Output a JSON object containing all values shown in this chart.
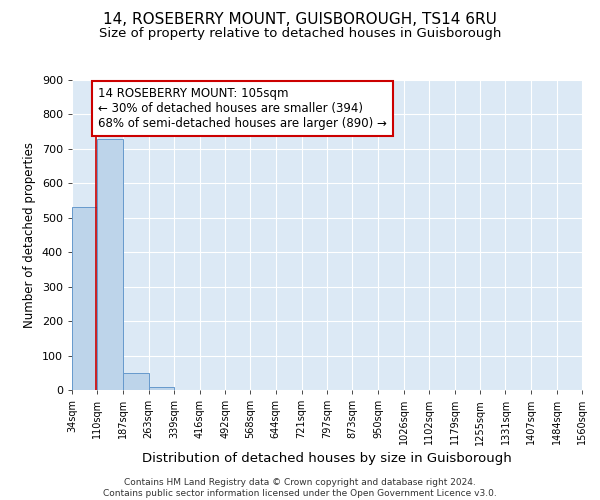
{
  "title": "14, ROSEBERRY MOUNT, GUISBOROUGH, TS14 6RU",
  "subtitle": "Size of property relative to detached houses in Guisborough",
  "xlabel": "Distribution of detached houses by size in Guisborough",
  "ylabel": "Number of detached properties",
  "bin_edges": [
    34,
    110,
    187,
    263,
    339,
    416,
    492,
    568,
    644,
    721,
    797,
    873,
    950,
    1026,
    1102,
    1179,
    1255,
    1331,
    1407,
    1484,
    1560
  ],
  "bin_labels": [
    "34sqm",
    "110sqm",
    "187sqm",
    "263sqm",
    "339sqm",
    "416sqm",
    "492sqm",
    "568sqm",
    "644sqm",
    "721sqm",
    "797sqm",
    "873sqm",
    "950sqm",
    "1026sqm",
    "1102sqm",
    "1179sqm",
    "1255sqm",
    "1331sqm",
    "1407sqm",
    "1484sqm",
    "1560sqm"
  ],
  "bar_heights": [
    530,
    730,
    50,
    10,
    0,
    0,
    0,
    0,
    0,
    0,
    0,
    0,
    0,
    0,
    0,
    0,
    0,
    0,
    0,
    0
  ],
  "bar_color": "#bdd4ea",
  "bar_edge_color": "#6699cc",
  "bg_color": "#dce9f5",
  "grid_color": "#ffffff",
  "property_size": 105,
  "red_line_color": "#cc0000",
  "annotation_line1": "14 ROSEBERRY MOUNT: 105sqm",
  "annotation_line2": "← 30% of detached houses are smaller (394)",
  "annotation_line3": "68% of semi-detached houses are larger (890) →",
  "annotation_box_color": "#ffffff",
  "annotation_border_color": "#cc0000",
  "ylim": [
    0,
    900
  ],
  "footer_text": "Contains HM Land Registry data © Crown copyright and database right 2024.\nContains public sector information licensed under the Open Government Licence v3.0.",
  "title_fontsize": 11,
  "subtitle_fontsize": 9.5,
  "xlabel_fontsize": 9.5,
  "ylabel_fontsize": 8.5,
  "tick_fontsize": 7,
  "annotation_fontsize": 8.5,
  "footer_fontsize": 6.5
}
